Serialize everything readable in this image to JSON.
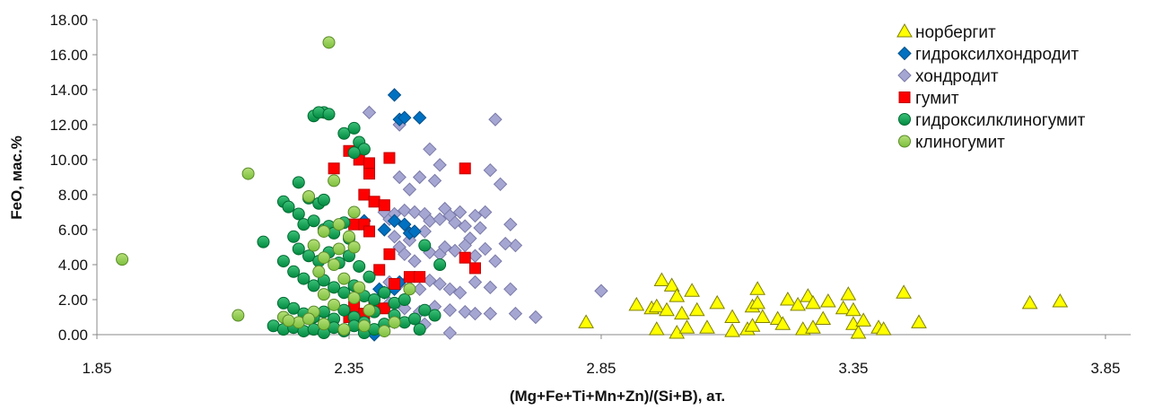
{
  "chart_data": {
    "type": "scatter",
    "xlabel": "(Mg+Fe+Ti+Mn+Zn)/(Si+B), ат.",
    "ylabel": "FeO, мас.%",
    "xlim": [
      1.85,
      3.9
    ],
    "ylim": [
      0,
      18
    ],
    "x_ticks": [
      "1.85",
      "2.35",
      "2.85",
      "3.35",
      "3.85"
    ],
    "y_ticks": [
      "0.00",
      "2.00",
      "4.00",
      "6.00",
      "8.00",
      "10.00",
      "12.00",
      "14.00",
      "16.00",
      "18.00"
    ],
    "grid": false,
    "legend_position": "top-right",
    "series": [
      {
        "name": "норбергит",
        "marker": "triangle",
        "color": "#ffff00",
        "points": [
          [
            2.82,
            0.7
          ],
          [
            2.92,
            1.7
          ],
          [
            2.95,
            1.5
          ],
          [
            2.96,
            1.6
          ],
          [
            2.97,
            3.1
          ],
          [
            2.98,
            1.4
          ],
          [
            2.99,
            2.8
          ],
          [
            3.0,
            2.2
          ],
          [
            3.0,
            0.1
          ],
          [
            3.01,
            1.2
          ],
          [
            3.02,
            0.4
          ],
          [
            3.03,
            2.5
          ],
          [
            3.04,
            1.4
          ],
          [
            2.96,
            0.3
          ],
          [
            3.06,
            0.4
          ],
          [
            3.08,
            1.8
          ],
          [
            3.11,
            0.2
          ],
          [
            3.11,
            1.0
          ],
          [
            3.14,
            0.3
          ],
          [
            3.15,
            0.5
          ],
          [
            3.15,
            1.6
          ],
          [
            3.16,
            2.6
          ],
          [
            3.16,
            1.8
          ],
          [
            3.17,
            1.0
          ],
          [
            3.2,
            0.9
          ],
          [
            3.21,
            0.6
          ],
          [
            3.22,
            2.0
          ],
          [
            3.24,
            1.7
          ],
          [
            3.25,
            0.3
          ],
          [
            3.26,
            2.2
          ],
          [
            3.27,
            1.8
          ],
          [
            3.27,
            0.4
          ],
          [
            3.3,
            1.9
          ],
          [
            3.29,
            0.9
          ],
          [
            3.33,
            1.5
          ],
          [
            3.34,
            2.3
          ],
          [
            3.35,
            1.4
          ],
          [
            3.35,
            0.6
          ],
          [
            3.36,
            0.1
          ],
          [
            3.37,
            0.8
          ],
          [
            3.4,
            0.4
          ],
          [
            3.41,
            0.3
          ],
          [
            3.45,
            2.4
          ],
          [
            3.48,
            0.7
          ],
          [
            3.7,
            1.8
          ],
          [
            3.76,
            1.9
          ]
        ]
      },
      {
        "name": "гидроксилхондродит",
        "marker": "diamond",
        "color": "#0070c0",
        "points": [
          [
            2.44,
            13.7
          ],
          [
            2.45,
            12.3
          ],
          [
            2.46,
            12.4
          ],
          [
            2.49,
            12.4
          ],
          [
            2.38,
            6.5
          ],
          [
            2.42,
            6.0
          ],
          [
            2.44,
            6.5
          ],
          [
            2.46,
            6.3
          ],
          [
            2.47,
            5.8
          ],
          [
            2.48,
            5.9
          ],
          [
            2.41,
            2.6
          ],
          [
            2.42,
            2.4
          ],
          [
            2.44,
            2.6
          ],
          [
            2.45,
            3.0
          ],
          [
            2.4,
            0.0
          ]
        ]
      },
      {
        "name": "хондродит",
        "marker": "diamond",
        "color": "#a6a6d2",
        "points": [
          [
            2.39,
            12.7
          ],
          [
            2.45,
            12.0
          ],
          [
            2.51,
            10.6
          ],
          [
            2.53,
            9.7
          ],
          [
            2.42,
            7.0
          ],
          [
            2.43,
            6.6
          ],
          [
            2.44,
            6.9
          ],
          [
            2.45,
            9.0
          ],
          [
            2.46,
            7.1
          ],
          [
            2.47,
            8.3
          ],
          [
            2.48,
            7.0
          ],
          [
            2.49,
            9.0
          ],
          [
            2.5,
            6.9
          ],
          [
            2.51,
            6.5
          ],
          [
            2.52,
            8.8
          ],
          [
            2.53,
            6.6
          ],
          [
            2.54,
            7.2
          ],
          [
            2.55,
            6.8
          ],
          [
            2.56,
            6.4
          ],
          [
            2.57,
            7.0
          ],
          [
            2.58,
            6.2
          ],
          [
            2.59,
            5.5
          ],
          [
            2.6,
            6.8
          ],
          [
            2.61,
            6.1
          ],
          [
            2.62,
            7.0
          ],
          [
            2.63,
            9.4
          ],
          [
            2.64,
            12.3
          ],
          [
            2.65,
            8.6
          ],
          [
            2.67,
            6.3
          ],
          [
            2.68,
            5.1
          ],
          [
            2.44,
            5.6
          ],
          [
            2.45,
            5.0
          ],
          [
            2.46,
            4.6
          ],
          [
            2.47,
            5.4
          ],
          [
            2.48,
            4.2
          ],
          [
            2.5,
            5.9
          ],
          [
            2.51,
            4.7
          ],
          [
            2.53,
            4.6
          ],
          [
            2.54,
            5.0
          ],
          [
            2.56,
            4.8
          ],
          [
            2.58,
            5.1
          ],
          [
            2.6,
            4.5
          ],
          [
            2.62,
            4.9
          ],
          [
            2.64,
            4.2
          ],
          [
            2.66,
            5.2
          ],
          [
            2.43,
            3.0
          ],
          [
            2.45,
            2.9
          ],
          [
            2.47,
            3.2
          ],
          [
            2.49,
            2.6
          ],
          [
            2.51,
            3.1
          ],
          [
            2.53,
            2.9
          ],
          [
            2.55,
            2.6
          ],
          [
            2.57,
            2.4
          ],
          [
            2.6,
            3.0
          ],
          [
            2.63,
            2.7
          ],
          [
            2.67,
            2.6
          ],
          [
            2.43,
            1.8
          ],
          [
            2.46,
            1.5
          ],
          [
            2.49,
            1.3
          ],
          [
            2.52,
            1.6
          ],
          [
            2.55,
            1.4
          ],
          [
            2.58,
            1.3
          ],
          [
            2.6,
            1.2
          ],
          [
            2.63,
            1.2
          ],
          [
            2.68,
            1.2
          ],
          [
            2.72,
            1.0
          ],
          [
            2.85,
            2.5
          ],
          [
            2.44,
            0.7
          ],
          [
            2.5,
            0.6
          ],
          [
            2.55,
            0.1
          ]
        ]
      },
      {
        "name": "гумит",
        "marker": "square",
        "color": "#ff0000",
        "points": [
          [
            2.32,
            9.5
          ],
          [
            2.35,
            10.5
          ],
          [
            2.37,
            10.0
          ],
          [
            2.39,
            9.8
          ],
          [
            2.39,
            9.2
          ],
          [
            2.43,
            10.1
          ],
          [
            2.38,
            8.0
          ],
          [
            2.4,
            7.6
          ],
          [
            2.42,
            7.4
          ],
          [
            2.36,
            6.3
          ],
          [
            2.38,
            6.3
          ],
          [
            2.39,
            5.9
          ],
          [
            2.58,
            9.5
          ],
          [
            2.58,
            4.4
          ],
          [
            2.6,
            3.8
          ],
          [
            2.43,
            4.6
          ],
          [
            2.41,
            3.7
          ],
          [
            2.47,
            3.3
          ],
          [
            2.49,
            3.3
          ],
          [
            2.44,
            2.9
          ],
          [
            2.36,
            1.6
          ],
          [
            2.4,
            1.9
          ],
          [
            2.38,
            1.2
          ],
          [
            2.42,
            1.5
          ],
          [
            2.35,
            1.0
          ]
        ]
      },
      {
        "name": "гидроксилклиногумит",
        "marker": "circle",
        "color": "#00a050",
        "points": [
          [
            2.3,
            12.7
          ],
          [
            2.28,
            12.5
          ],
          [
            2.29,
            12.7
          ],
          [
            2.31,
            12.6
          ],
          [
            2.34,
            11.5
          ],
          [
            2.36,
            11.8
          ],
          [
            2.37,
            11.0
          ],
          [
            2.38,
            10.6
          ],
          [
            2.36,
            10.4
          ],
          [
            2.25,
            8.7
          ],
          [
            2.27,
            7.8
          ],
          [
            2.29,
            7.5
          ],
          [
            2.3,
            7.7
          ],
          [
            2.22,
            7.6
          ],
          [
            2.18,
            5.3
          ],
          [
            2.23,
            7.3
          ],
          [
            2.25,
            6.9
          ],
          [
            2.26,
            6.3
          ],
          [
            2.28,
            6.5
          ],
          [
            2.3,
            6.0
          ],
          [
            2.31,
            6.2
          ],
          [
            2.32,
            5.8
          ],
          [
            2.34,
            6.4
          ],
          [
            2.35,
            5.5
          ],
          [
            2.24,
            5.6
          ],
          [
            2.25,
            4.9
          ],
          [
            2.27,
            4.5
          ],
          [
            2.29,
            4.2
          ],
          [
            2.31,
            4.7
          ],
          [
            2.33,
            4.1
          ],
          [
            2.35,
            4.5
          ],
          [
            2.37,
            3.9
          ],
          [
            2.39,
            3.3
          ],
          [
            2.22,
            4.2
          ],
          [
            2.24,
            3.6
          ],
          [
            2.26,
            3.2
          ],
          [
            2.28,
            2.8
          ],
          [
            2.3,
            3.1
          ],
          [
            2.32,
            2.7
          ],
          [
            2.34,
            2.4
          ],
          [
            2.36,
            2.8
          ],
          [
            2.38,
            2.2
          ],
          [
            2.4,
            2.0
          ],
          [
            2.42,
            2.4
          ],
          [
            2.44,
            1.8
          ],
          [
            2.46,
            2.0
          ],
          [
            2.22,
            1.8
          ],
          [
            2.24,
            1.5
          ],
          [
            2.26,
            1.2
          ],
          [
            2.28,
            1.0
          ],
          [
            2.3,
            1.3
          ],
          [
            2.32,
            0.9
          ],
          [
            2.34,
            1.4
          ],
          [
            2.36,
            1.0
          ],
          [
            2.38,
            0.7
          ],
          [
            2.4,
            1.3
          ],
          [
            2.42,
            0.6
          ],
          [
            2.44,
            1.1
          ],
          [
            2.46,
            0.7
          ],
          [
            2.48,
            0.9
          ],
          [
            2.2,
            0.5
          ],
          [
            2.22,
            0.3
          ],
          [
            2.24,
            0.4
          ],
          [
            2.26,
            0.2
          ],
          [
            2.28,
            0.3
          ],
          [
            2.3,
            0.1
          ],
          [
            2.32,
            0.4
          ],
          [
            2.34,
            0.2
          ],
          [
            2.36,
            0.5
          ],
          [
            2.38,
            0.1
          ],
          [
            2.4,
            0.3
          ],
          [
            2.42,
            0.6
          ],
          [
            2.5,
            1.4
          ],
          [
            2.52,
            1.1
          ],
          [
            2.53,
            4.0
          ],
          [
            2.5,
            5.1
          ],
          [
            2.49,
            0.3
          ]
        ]
      },
      {
        "name": "клиногумит",
        "marker": "circle",
        "color": "#92d050",
        "points": [
          [
            1.9,
            4.3
          ],
          [
            2.31,
            16.7
          ],
          [
            2.15,
            9.2
          ],
          [
            2.32,
            8.8
          ],
          [
            2.27,
            7.9
          ],
          [
            2.36,
            7.0
          ],
          [
            2.33,
            6.3
          ],
          [
            2.35,
            5.6
          ],
          [
            2.3,
            5.9
          ],
          [
            2.28,
            5.1
          ],
          [
            2.33,
            4.9
          ],
          [
            2.36,
            5.0
          ],
          [
            2.3,
            4.4
          ],
          [
            2.32,
            4.0
          ],
          [
            2.29,
            3.6
          ],
          [
            2.34,
            3.2
          ],
          [
            2.37,
            2.7
          ],
          [
            2.3,
            2.3
          ],
          [
            2.36,
            2.1
          ],
          [
            2.32,
            1.7
          ],
          [
            2.39,
            1.4
          ],
          [
            2.28,
            1.3
          ],
          [
            2.22,
            1.0
          ],
          [
            2.25,
            0.7
          ],
          [
            2.27,
            0.9
          ],
          [
            2.3,
            0.6
          ],
          [
            2.34,
            0.3
          ],
          [
            2.38,
            0.5
          ],
          [
            2.42,
            0.2
          ],
          [
            2.44,
            0.7
          ],
          [
            2.47,
            2.6
          ],
          [
            2.13,
            1.1
          ],
          [
            2.23,
            0.8
          ]
        ]
      }
    ]
  }
}
